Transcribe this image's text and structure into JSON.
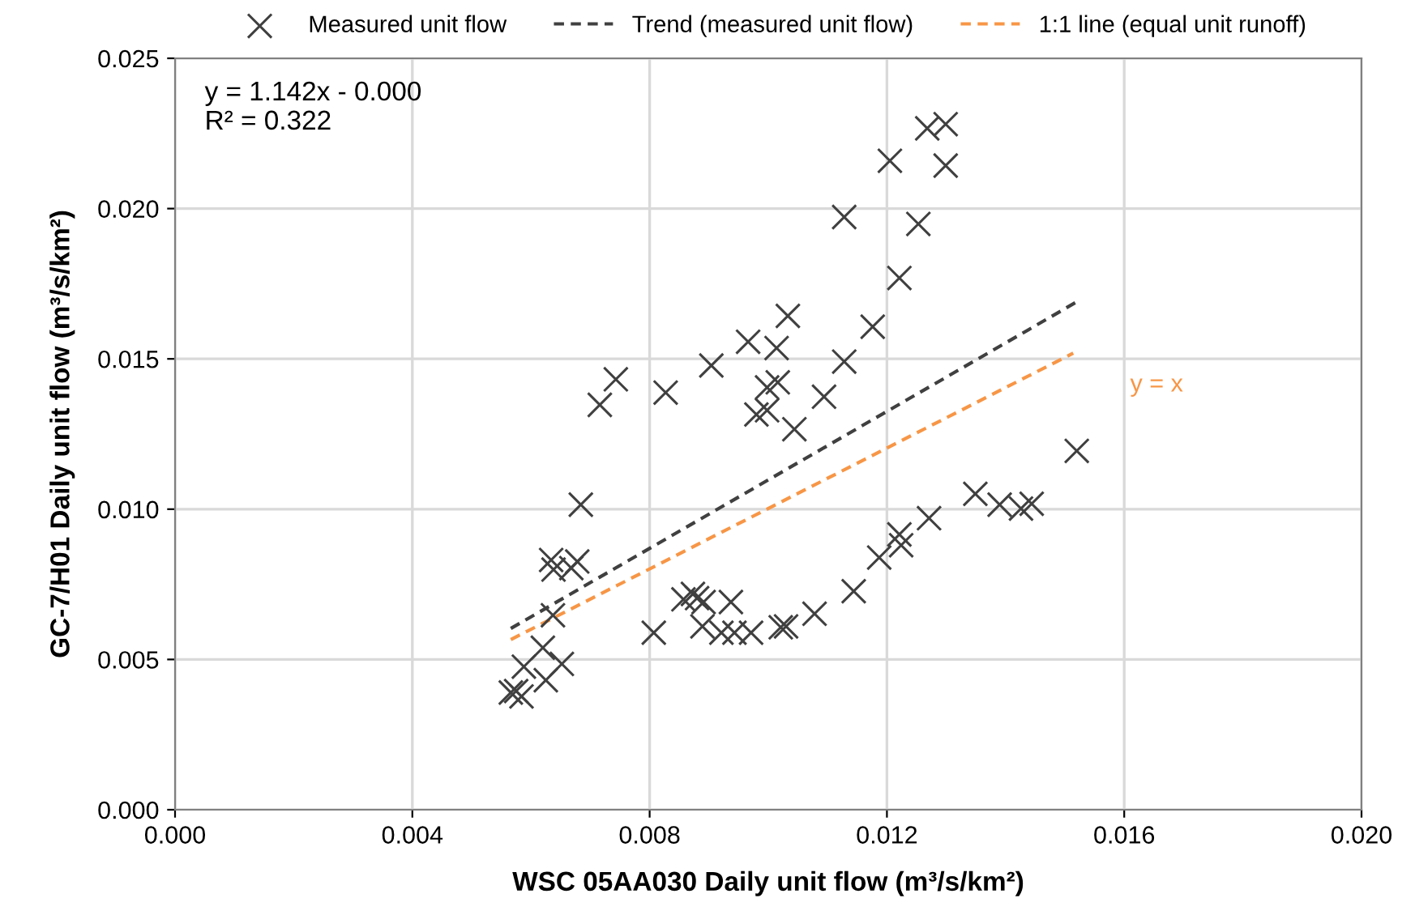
{
  "chart_data": {
    "type": "scatter",
    "xlabel": "WSC 05AA030 Daily unit flow (m³/s/km²)",
    "ylabel": "GC-7/H01 Daily unit flow (m³/s/km²)",
    "xlim": [
      0,
      0.02
    ],
    "xticks": [
      {
        "value": 0,
        "label": "0.000"
      },
      {
        "value": 0.004,
        "label": "0.004"
      },
      {
        "value": 0.008,
        "label": "0.008"
      },
      {
        "value": 0.012,
        "label": "0.012"
      },
      {
        "value": 0.016,
        "label": "0.016"
      },
      {
        "value": 0.02,
        "label": "0.020"
      }
    ],
    "ylim": [
      0,
      0.025
    ],
    "yticks": [
      {
        "value": 0,
        "label": "0.000"
      },
      {
        "value": 0.005,
        "label": "0.005"
      },
      {
        "value": 0.01,
        "label": "0.010"
      },
      {
        "value": 0.015,
        "label": "0.015"
      },
      {
        "value": 0.02,
        "label": "0.020"
      },
      {
        "value": 0.025,
        "label": "0.025"
      }
    ],
    "grid": true,
    "legend": "top",
    "series": [
      {
        "name": "Measured unit flow",
        "marker": "cross",
        "color": "#404040",
        "x": [
          0.00807,
          0.00857,
          0.00873,
          0.0088,
          0.00891,
          0.00937,
          0.00889,
          0.00921,
          0.00943,
          0.00971,
          0.01021,
          0.00966,
          0.01014,
          0.00904,
          0.00743,
          0.00716,
          0.00827,
          0.00998,
          0.01016,
          0.0098,
          0.00998,
          0.01044,
          0.00684,
          0.00634,
          0.00638,
          0.00678,
          0.00668,
          0.00637,
          0.0062,
          0.00652,
          0.00588,
          0.00625,
          0.00575,
          0.00584,
          0.00566,
          0.01268,
          0.01299,
          0.01205,
          0.01299,
          0.01128,
          0.01253,
          0.01221,
          0.01176,
          0.01033,
          0.01128,
          0.01094,
          0.0152,
          0.01349,
          0.0139,
          0.01426,
          0.01444,
          0.01271,
          0.01221,
          0.01224,
          0.01187,
          0.01144,
          0.01078,
          0.0103
        ],
        "values": [
          0.00589,
          0.007,
          0.00718,
          0.00704,
          0.00691,
          0.00691,
          0.0061,
          0.00589,
          0.00589,
          0.00589,
          0.00607,
          0.01557,
          0.01536,
          0.01478,
          0.01432,
          0.01347,
          0.01388,
          0.01405,
          0.01422,
          0.01315,
          0.01329,
          0.01266,
          0.01015,
          0.00831,
          0.00799,
          0.00826,
          0.00804,
          0.00647,
          0.00539,
          0.00485,
          0.00476,
          0.00431,
          0.00395,
          0.00377,
          0.0039,
          0.02267,
          0.02281,
          0.02159,
          0.02143,
          0.01972,
          0.01949,
          0.01769,
          0.01607,
          0.01643,
          0.01491,
          0.01374,
          0.01194,
          0.01051,
          0.01015,
          0.01002,
          0.01018,
          0.0097,
          0.00916,
          0.0088,
          0.00839,
          0.00727,
          0.00652,
          0.0061
        ]
      },
      {
        "name": "Trend (measured unit flow)",
        "type": "line",
        "line_style": "dashed",
        "color": "#404040",
        "x": [
          0.00566,
          0.01522
        ],
        "values": [
          0.00603,
          0.01692
        ]
      },
      {
        "name": "1:1 line (equal unit runoff)",
        "type": "line",
        "line_style": "dashed",
        "color": "#f79646",
        "x": [
          0.00566,
          0.01514
        ],
        "values": [
          0.00566,
          0.01519
        ]
      }
    ],
    "annotations": [
      "y = 1.142x - 0.000\nR² = 0.322",
      "y = x"
    ]
  }
}
